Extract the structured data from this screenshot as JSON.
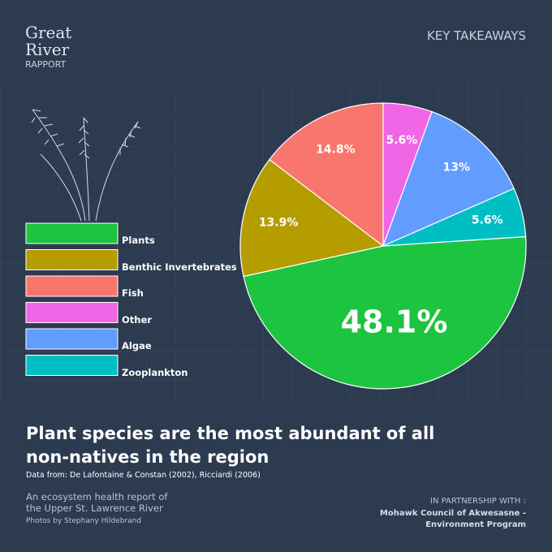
{
  "brand": {
    "line1": "Great",
    "line2": "River",
    "line3": "RAPPORT"
  },
  "section": "KEY TAKEAWAYS",
  "chart_data": {
    "type": "pie",
    "categories": [
      "Plants",
      "Benthic Invertebrates",
      "Fish",
      "Other",
      "Algae",
      "Zooplankton"
    ],
    "values": [
      48.1,
      13.9,
      14.8,
      5.6,
      13,
      5.6
    ],
    "value_labels": [
      "48.1%",
      "13.9%",
      "14.8%",
      "5.6%",
      "13%",
      "5.6%"
    ],
    "colors": [
      "#1dc43f",
      "#b59d00",
      "#f8766d",
      "#f066e6",
      "#619cff",
      "#00bfc4"
    ],
    "title": "Plant species are the most abundant of all non-natives in the region",
    "source": "Data from: De Lafontaine & Constan (2002), Ricciardi (2006)"
  },
  "footer": {
    "report1": "An ecosystem health report of",
    "report2": "the Upper St. Lawrence River",
    "photos": "Photos by Stephany Hildebrand",
    "partner1": "IN PARTNERSHIP WITH :",
    "partner2": "Mohawk Council of Akwesasne -",
    "partner3": "Environment Program"
  }
}
